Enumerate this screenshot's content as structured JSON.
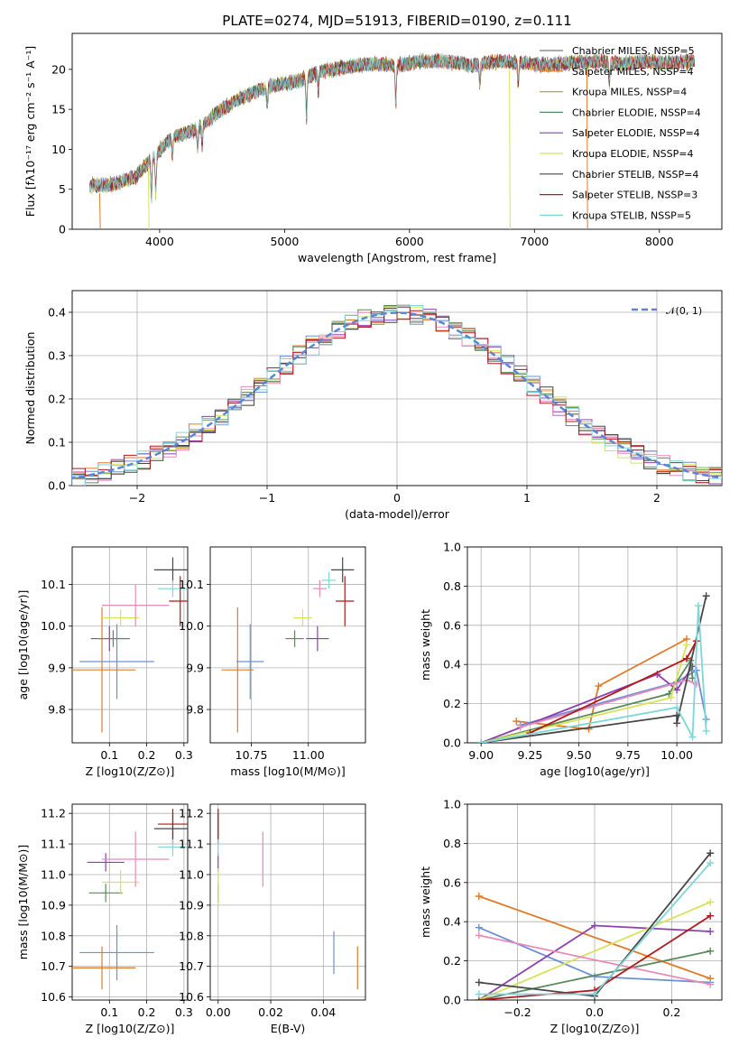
{
  "title": "PLATE=0274, MJD=51913, FIBERID=0190, z=0.111",
  "colors": {
    "chabrier_miles": "#1f77b4",
    "c_orange": "#e07b2a",
    "c_blue": "#6c8fd6",
    "c_purple": "#8e3fb0",
    "c_green": "#5a8a5a",
    "c_yellow": "#d7e35a",
    "c_dark": "#474747",
    "c_red": "#b2181b",
    "c_cyan": "#7fd6d8",
    "c_pink": "#e98ab8"
  },
  "chart_data": [
    {
      "type": "line",
      "name": "spectrum",
      "xlabel": "wavelength [Angstrom, rest frame]",
      "ylabel": "Flux [fλ10⁻¹⁷ erg cm⁻² s⁻¹ A⁻¹]",
      "xlim": [
        3300,
        8500
      ],
      "ylim": [
        0,
        24.5
      ],
      "xticks": [
        "4000",
        "5000",
        "6000",
        "7000",
        "8000"
      ],
      "yticks": [
        "0",
        "5",
        "10",
        "15",
        "20"
      ],
      "legend": "right",
      "legend_entries": [
        {
          "label": "Chabrier MILES, NSSP=5",
          "color": "#7a7a7a"
        },
        {
          "label": "Salpeter MILES, NSSP=4",
          "color": "#e07b2a"
        },
        {
          "label": "Kroupa MILES, NSSP=4",
          "color": "#c9a227"
        },
        {
          "label": "Chabrier ELODIE, NSSP=4",
          "color": "#5a8a5a"
        },
        {
          "label": "Salpeter ELODIE, NSSP=4",
          "color": "#8e3fb0"
        },
        {
          "label": "Kroupa ELODIE, NSSP=4",
          "color": "#d7e35a"
        },
        {
          "label": "Chabrier STELIB, NSSP=4",
          "color": "#474747"
        },
        {
          "label": "Salpeter STELIB, NSSP=3",
          "color": "#b2181b"
        },
        {
          "label": "Kroupa STELIB, NSSP=5",
          "color": "#7fd6d8"
        }
      ],
      "envelope_x": [
        3450,
        3600,
        3800,
        3950,
        4100,
        4300,
        4500,
        4700,
        4900,
        5100,
        5300,
        5500,
        5700,
        5900,
        6100,
        6300,
        6500,
        6700,
        6900,
        7100,
        7300,
        7500,
        7700,
        7900,
        8100,
        8300
      ],
      "envelope_y": [
        5.5,
        5.5,
        6.5,
        9.0,
        11.5,
        12.5,
        15.0,
        16.8,
        18.0,
        18.5,
        19.8,
        20.3,
        20.7,
        20.5,
        21.0,
        21.0,
        20.5,
        21.0,
        20.8,
        20.5,
        20.8,
        21.0,
        20.7,
        21.0,
        20.8,
        21.0
      ]
    },
    {
      "type": "histogram",
      "name": "residuals",
      "xlabel": "(data-model)/error",
      "ylabel": "Normed distribution",
      "xlim": [
        -2.5,
        2.5
      ],
      "ylim": [
        0,
        0.45
      ],
      "xticks": [
        "−2",
        "−1",
        "0",
        "1",
        "2"
      ],
      "yticks": [
        "0.0",
        "0.1",
        "0.2",
        "0.3",
        "0.4"
      ],
      "legend": "top-right",
      "legend_entries": [
        {
          "label": "𝒩(0, 1)",
          "color": "#5b86d6"
        }
      ],
      "bin_width": 0.1,
      "grid": true
    },
    {
      "type": "scatter",
      "name": "age_vs_Z",
      "xlabel": "Z [log10(Z/Z⊙)]",
      "ylabel": "age  [log10(age/yr)]",
      "xlim": [
        0.0,
        0.31
      ],
      "ylim": [
        9.72,
        10.19
      ],
      "xticks": [
        "0.1",
        "0.2",
        "0.3"
      ],
      "yticks": [
        "9.8",
        "9.9",
        "10.0",
        "10.1"
      ],
      "points": [
        {
          "x": 0.08,
          "y": 9.895,
          "xerr": 0.09,
          "yerr": 0.15,
          "color": "#e07b2a"
        },
        {
          "x": 0.12,
          "y": 9.915,
          "xerr": 0.1,
          "yerr": 0.09,
          "color": "#6c8fd6"
        },
        {
          "x": 0.1,
          "y": 9.97,
          "xerr": 0.05,
          "yerr": 0.03,
          "color": "#8e3fb0"
        },
        {
          "x": 0.11,
          "y": 9.97,
          "xerr": 0.045,
          "yerr": 0.02,
          "color": "#5a8a5a"
        },
        {
          "x": 0.13,
          "y": 10.02,
          "xerr": 0.05,
          "yerr": 0.02,
          "color": "#d7e35a"
        },
        {
          "x": 0.17,
          "y": 10.05,
          "xerr": 0.09,
          "yerr": 0.05,
          "color": "#e98ab8"
        },
        {
          "x": 0.27,
          "y": 10.135,
          "xerr": 0.05,
          "yerr": 0.03,
          "color": "#474747"
        },
        {
          "x": 0.27,
          "y": 10.09,
          "xerr": 0.04,
          "yerr": 0.02,
          "color": "#7fd6d8"
        },
        {
          "x": 0.29,
          "y": 10.06,
          "xerr": 0.03,
          "yerr": 0.06,
          "color": "#b2181b"
        }
      ]
    },
    {
      "type": "scatter",
      "name": "age_vs_mass",
      "xlabel": "mass [log10(M/M⊙)]",
      "ylabel": "",
      "xlim": [
        10.57,
        11.25
      ],
      "ylim": [
        9.72,
        10.19
      ],
      "xticks": [
        "10.75",
        "11.00"
      ],
      "yticks": [
        "9.8",
        "9.9",
        "10.0",
        "10.1"
      ],
      "points": [
        {
          "x": 10.69,
          "y": 9.895,
          "xerr": 0.07,
          "yerr": 0.15,
          "color": "#e07b2a"
        },
        {
          "x": 10.745,
          "y": 9.915,
          "xerr": 0.06,
          "yerr": 0.09,
          "color": "#6c8fd6"
        },
        {
          "x": 11.04,
          "y": 9.97,
          "xerr": 0.05,
          "yerr": 0.03,
          "color": "#8e3fb0"
        },
        {
          "x": 10.94,
          "y": 9.97,
          "xerr": 0.04,
          "yerr": 0.02,
          "color": "#5a8a5a"
        },
        {
          "x": 10.975,
          "y": 10.02,
          "xerr": 0.04,
          "yerr": 0.02,
          "color": "#d7e35a"
        },
        {
          "x": 11.05,
          "y": 10.09,
          "xerr": 0.03,
          "yerr": 0.02,
          "color": "#e98ab8"
        },
        {
          "x": 11.15,
          "y": 10.135,
          "xerr": 0.05,
          "yerr": 0.03,
          "color": "#474747"
        },
        {
          "x": 11.09,
          "y": 10.11,
          "xerr": 0.03,
          "yerr": 0.02,
          "color": "#7fd6d8"
        },
        {
          "x": 11.16,
          "y": 10.06,
          "xerr": 0.04,
          "yerr": 0.06,
          "color": "#b2181b"
        }
      ]
    },
    {
      "type": "line",
      "name": "weight_vs_age",
      "xlabel": "age  [log10(age/yr)]",
      "ylabel": "mass weight",
      "xlim": [
        8.93,
        10.23
      ],
      "ylim": [
        0,
        1
      ],
      "xticks": [
        "9.00",
        "9.25",
        "9.50",
        "9.75",
        "10.00"
      ],
      "yticks": [
        "0.0",
        "0.2",
        "0.4",
        "0.6",
        "0.8",
        "1.0"
      ],
      "grid": true,
      "series": [
        {
          "color": "#e07b2a",
          "x": [
            9.18,
            9.55,
            9.6,
            10.05
          ],
          "y": [
            0.11,
            0.07,
            0.29,
            0.53
          ]
        },
        {
          "color": "#6c8fd6",
          "x": [
            9.2,
            10.0,
            10.1,
            10.15
          ],
          "y": [
            0.09,
            0.31,
            0.37,
            0.12
          ]
        },
        {
          "color": "#8e3fb0",
          "x": [
            9.0,
            9.9,
            10.0,
            10.08
          ],
          "y": [
            0.0,
            0.35,
            0.27,
            0.39
          ]
        },
        {
          "color": "#5a8a5a",
          "x": [
            9.0,
            9.96,
            10.07,
            10.08
          ],
          "y": [
            0.0,
            0.25,
            0.42,
            0.33
          ]
        },
        {
          "color": "#d7e35a",
          "x": [
            9.0,
            9.97,
            10.05
          ],
          "y": [
            0.0,
            0.23,
            0.5
          ]
        },
        {
          "color": "#e98ab8",
          "x": [
            9.2,
            10.05,
            10.1
          ],
          "y": [
            0.08,
            0.32,
            0.3
          ]
        },
        {
          "color": "#474747",
          "x": [
            9.0,
            10.0,
            10.0,
            10.15
          ],
          "y": [
            0.0,
            0.14,
            0.1,
            0.75
          ]
        },
        {
          "color": "#b2181b",
          "x": [
            9.25,
            10.05,
            10.1
          ],
          "y": [
            0.05,
            0.43,
            0.52
          ]
        },
        {
          "color": "#7fd6d8",
          "x": [
            9.0,
            10.0,
            10.08,
            10.11,
            10.15
          ],
          "y": [
            0.0,
            0.18,
            0.03,
            0.7,
            0.06
          ]
        }
      ]
    },
    {
      "type": "scatter",
      "name": "mass_vs_Z",
      "xlabel": "Z [log10(Z/Z⊙)]",
      "ylabel": "mass [log10(M/M⊙)]",
      "xlim": [
        0.0,
        0.31
      ],
      "ylim": [
        10.59,
        11.23
      ],
      "xticks": [
        "0.1",
        "0.2",
        "0.3"
      ],
      "yticks": [
        "10.6",
        "10.7",
        "10.8",
        "10.9",
        "11.0",
        "11.1",
        "11.2"
      ],
      "points": [
        {
          "x": 0.08,
          "y": 10.695,
          "xerr": 0.09,
          "yerr": 0.07,
          "color": "#e07b2a"
        },
        {
          "x": 0.12,
          "y": 10.745,
          "xerr": 0.1,
          "yerr": 0.09,
          "color": "#6c8fd6"
        },
        {
          "x": 0.09,
          "y": 11.04,
          "xerr": 0.05,
          "yerr": 0.03,
          "color": "#8e3fb0"
        },
        {
          "x": 0.09,
          "y": 10.94,
          "xerr": 0.045,
          "yerr": 0.03,
          "color": "#5a8a5a"
        },
        {
          "x": 0.13,
          "y": 10.975,
          "xerr": 0.05,
          "yerr": 0.04,
          "color": "#d7e35a"
        },
        {
          "x": 0.17,
          "y": 11.05,
          "xerr": 0.09,
          "yerr": 0.09,
          "color": "#e98ab8"
        },
        {
          "x": 0.27,
          "y": 11.15,
          "xerr": 0.05,
          "yerr": 0.05,
          "color": "#474747"
        },
        {
          "x": 0.27,
          "y": 11.09,
          "xerr": 0.04,
          "yerr": 0.03,
          "color": "#7fd6d8"
        },
        {
          "x": 0.27,
          "y": 11.165,
          "xerr": 0.04,
          "yerr": 0.05,
          "color": "#b2181b"
        }
      ]
    },
    {
      "type": "scatter",
      "name": "mass_vs_EBV",
      "xlabel": "E(B-V)",
      "ylabel": "",
      "xlim": [
        -0.003,
        0.056
      ],
      "ylim": [
        10.59,
        11.23
      ],
      "xticks": [
        "0.00",
        "0.02",
        "0.04"
      ],
      "yticks": [
        "10.6",
        "10.7",
        "10.8",
        "10.9",
        "11.0",
        "11.1",
        "11.2"
      ],
      "points": [
        {
          "x": 0.053,
          "y": 10.695,
          "xerr": 0,
          "yerr": 0.07,
          "color": "#e07b2a"
        },
        {
          "x": 0.044,
          "y": 10.745,
          "xerr": 0,
          "yerr": 0.07,
          "color": "#6c8fd6"
        },
        {
          "x": 0.0,
          "y": 11.04,
          "xerr": 0,
          "yerr": 0.03,
          "color": "#8e3fb0"
        },
        {
          "x": 0.0,
          "y": 10.94,
          "xerr": 0,
          "yerr": 0.03,
          "color": "#5a8a5a"
        },
        {
          "x": 0.0,
          "y": 10.96,
          "xerr": 0,
          "yerr": 0.06,
          "color": "#d7e35a"
        },
        {
          "x": 0.017,
          "y": 11.05,
          "xerr": 0,
          "yerr": 0.09,
          "color": "#e98ab8"
        },
        {
          "x": 0.0,
          "y": 11.15,
          "xerr": 0,
          "yerr": 0.05,
          "color": "#474747"
        },
        {
          "x": 0.0,
          "y": 11.09,
          "xerr": 0,
          "yerr": 0.03,
          "color": "#7fd6d8"
        },
        {
          "x": 0.0,
          "y": 11.165,
          "xerr": 0,
          "yerr": 0.05,
          "color": "#b2181b"
        }
      ]
    },
    {
      "type": "line",
      "name": "weight_vs_Z",
      "xlabel": "Z [log10(Z/Z⊙)]",
      "ylabel": "mass weight",
      "xlim": [
        -0.33,
        0.33
      ],
      "ylim": [
        0,
        1
      ],
      "xticks": [
        "−0.2",
        "0.0",
        "0.2"
      ],
      "yticks": [
        "0.0",
        "0.2",
        "0.4",
        "0.6",
        "0.8",
        "1.0"
      ],
      "grid": true,
      "series": [
        {
          "color": "#e07b2a",
          "x": [
            -0.3,
            0.3
          ],
          "y": [
            0.53,
            0.11
          ]
        },
        {
          "color": "#6c8fd6",
          "x": [
            -0.3,
            0.0,
            0.3
          ],
          "y": [
            0.37,
            0.12,
            0.09
          ]
        },
        {
          "color": "#8e3fb0",
          "x": [
            -0.3,
            0.0,
            0.3
          ],
          "y": [
            0.0,
            0.38,
            0.35
          ]
        },
        {
          "color": "#5a8a5a",
          "x": [
            -0.3,
            0.3
          ],
          "y": [
            0.0,
            0.25
          ]
        },
        {
          "color": "#d7e35a",
          "x": [
            -0.3,
            0.3
          ],
          "y": [
            0.0,
            0.5
          ]
        },
        {
          "color": "#e98ab8",
          "x": [
            -0.3,
            0.3
          ],
          "y": [
            0.33,
            0.08
          ]
        },
        {
          "color": "#474747",
          "x": [
            -0.3,
            0.0,
            0.3
          ],
          "y": [
            0.09,
            0.02,
            0.75
          ]
        },
        {
          "color": "#b2181b",
          "x": [
            -0.3,
            0.0,
            0.3
          ],
          "y": [
            0.0,
            0.05,
            0.43
          ]
        },
        {
          "color": "#7fd6d8",
          "x": [
            -0.3,
            0.0,
            0.3
          ],
          "y": [
            0.03,
            0.03,
            0.7
          ]
        }
      ]
    }
  ]
}
